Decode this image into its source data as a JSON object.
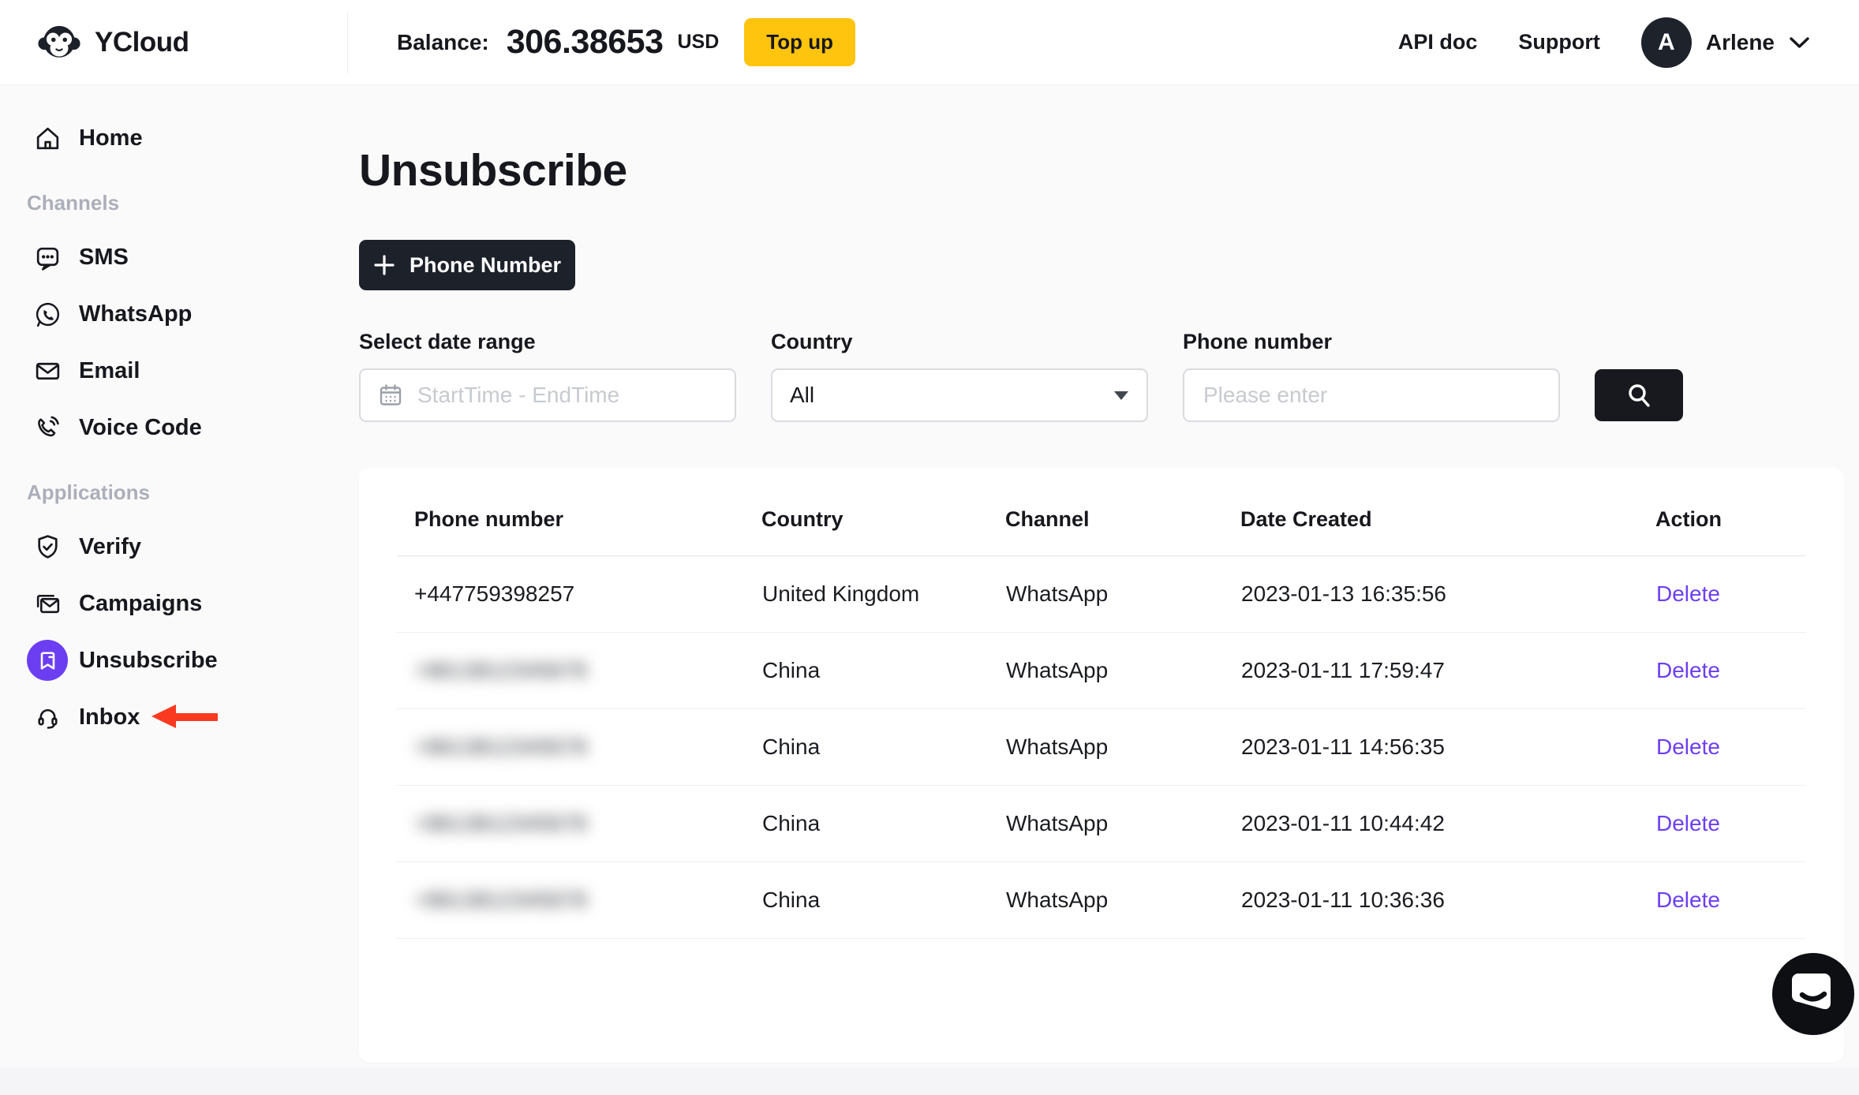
{
  "topbar": {
    "brand": "YCloud",
    "balance_label": "Balance:",
    "balance_value": "306.38653",
    "currency": "USD",
    "topup_label": "Top up",
    "api_doc_label": "API doc",
    "support_label": "Support",
    "avatar_initial": "A",
    "username": "Arlene"
  },
  "sidebar": {
    "sections": [
      {
        "label": "",
        "items": [
          {
            "label": "Home"
          }
        ]
      },
      {
        "label": "Channels",
        "items": [
          {
            "label": "SMS"
          },
          {
            "label": "WhatsApp"
          },
          {
            "label": "Email"
          },
          {
            "label": "Voice Code"
          }
        ]
      },
      {
        "label": "Applications",
        "items": [
          {
            "label": "Verify"
          },
          {
            "label": "Campaigns"
          },
          {
            "label": "Unsubscribe"
          },
          {
            "label": "Inbox"
          }
        ]
      }
    ],
    "active_item": "Unsubscribe",
    "annotated_item": "Inbox"
  },
  "main": {
    "title": "Unsubscribe",
    "add_button_label": "Phone Number",
    "filters": {
      "date_label": "Select date range",
      "date_placeholder": "StartTime - EndTime",
      "country_label": "Country",
      "country_value": "All",
      "phone_label": "Phone number",
      "phone_placeholder": "Please enter"
    },
    "table": {
      "columns": [
        "Phone number",
        "Country",
        "Channel",
        "Date Created",
        "Action"
      ],
      "redacted_text": "+8613812345678",
      "rows": [
        {
          "phone": "+447759398257",
          "redacted": false,
          "country": "United Kingdom",
          "channel": "WhatsApp",
          "date_created": "2023-01-13 16:35:56",
          "action": "Delete"
        },
        {
          "phone": "",
          "redacted": true,
          "country": "China",
          "channel": "WhatsApp",
          "date_created": "2023-01-11 17:59:47",
          "action": "Delete"
        },
        {
          "phone": "",
          "redacted": true,
          "country": "China",
          "channel": "WhatsApp",
          "date_created": "2023-01-11 14:56:35",
          "action": "Delete"
        },
        {
          "phone": "",
          "redacted": true,
          "country": "China",
          "channel": "WhatsApp",
          "date_created": "2023-01-11 10:44:42",
          "action": "Delete"
        },
        {
          "phone": "",
          "redacted": true,
          "country": "China",
          "channel": "WhatsApp",
          "date_created": "2023-01-11 10:36:36",
          "action": "Delete"
        }
      ]
    }
  },
  "colors": {
    "accent_purple": "#6C3EF5",
    "topup_yellow": "#FFC40D",
    "dark": "#17181D",
    "annotation_red": "#F93A20"
  }
}
